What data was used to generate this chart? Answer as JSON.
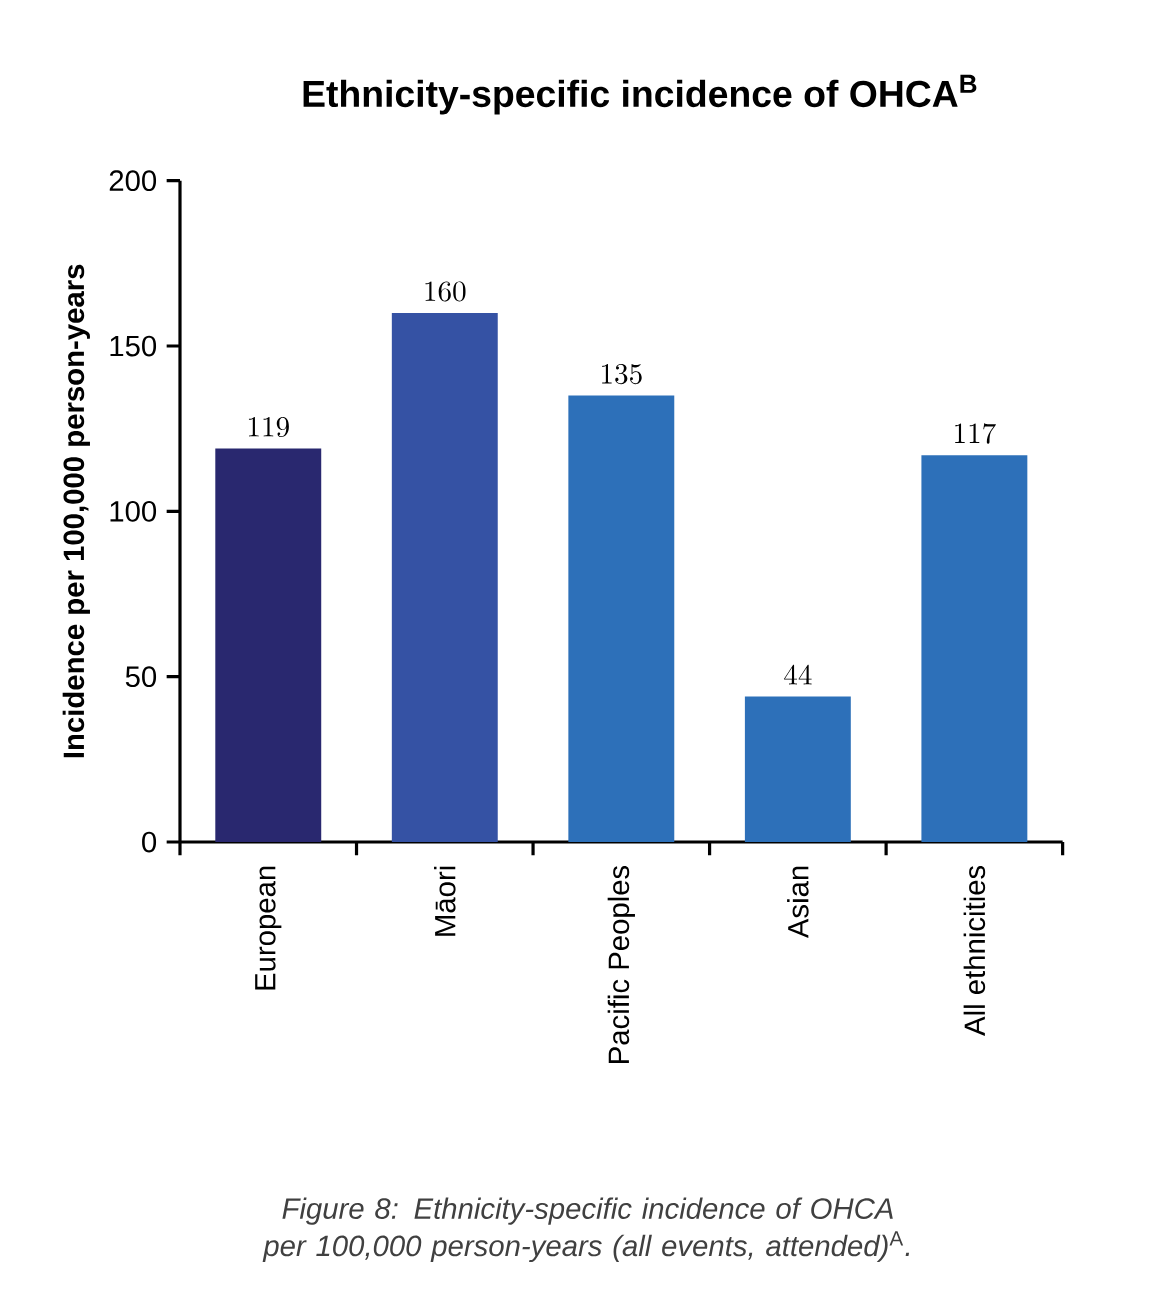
{
  "chart_data": {
    "type": "bar",
    "title": "Ethnicity-specific incidence of OHCA$^{B}$",
    "ylabel": "Incidence per 100,000 person-years",
    "categories": [
      "European",
      "Māori",
      "Pacific Peoples",
      "Asian",
      "All ethnicities"
    ],
    "values": [
      119,
      160,
      135,
      44,
      117
    ],
    "colors": [
      "#29286f",
      "#3552a4",
      "#2d70b9",
      "#2d70b9",
      "#2d70b9"
    ],
    "ylim": [
      0,
      200
    ],
    "yticks": [
      0,
      50,
      100,
      150,
      200
    ],
    "data_labels": true,
    "annotations": [
      "*Figure 8: Ethnicity-specific incidence of OHCA per 100,000 person-years (all events, attended)*$^{A}$*.*"
    ]
  }
}
